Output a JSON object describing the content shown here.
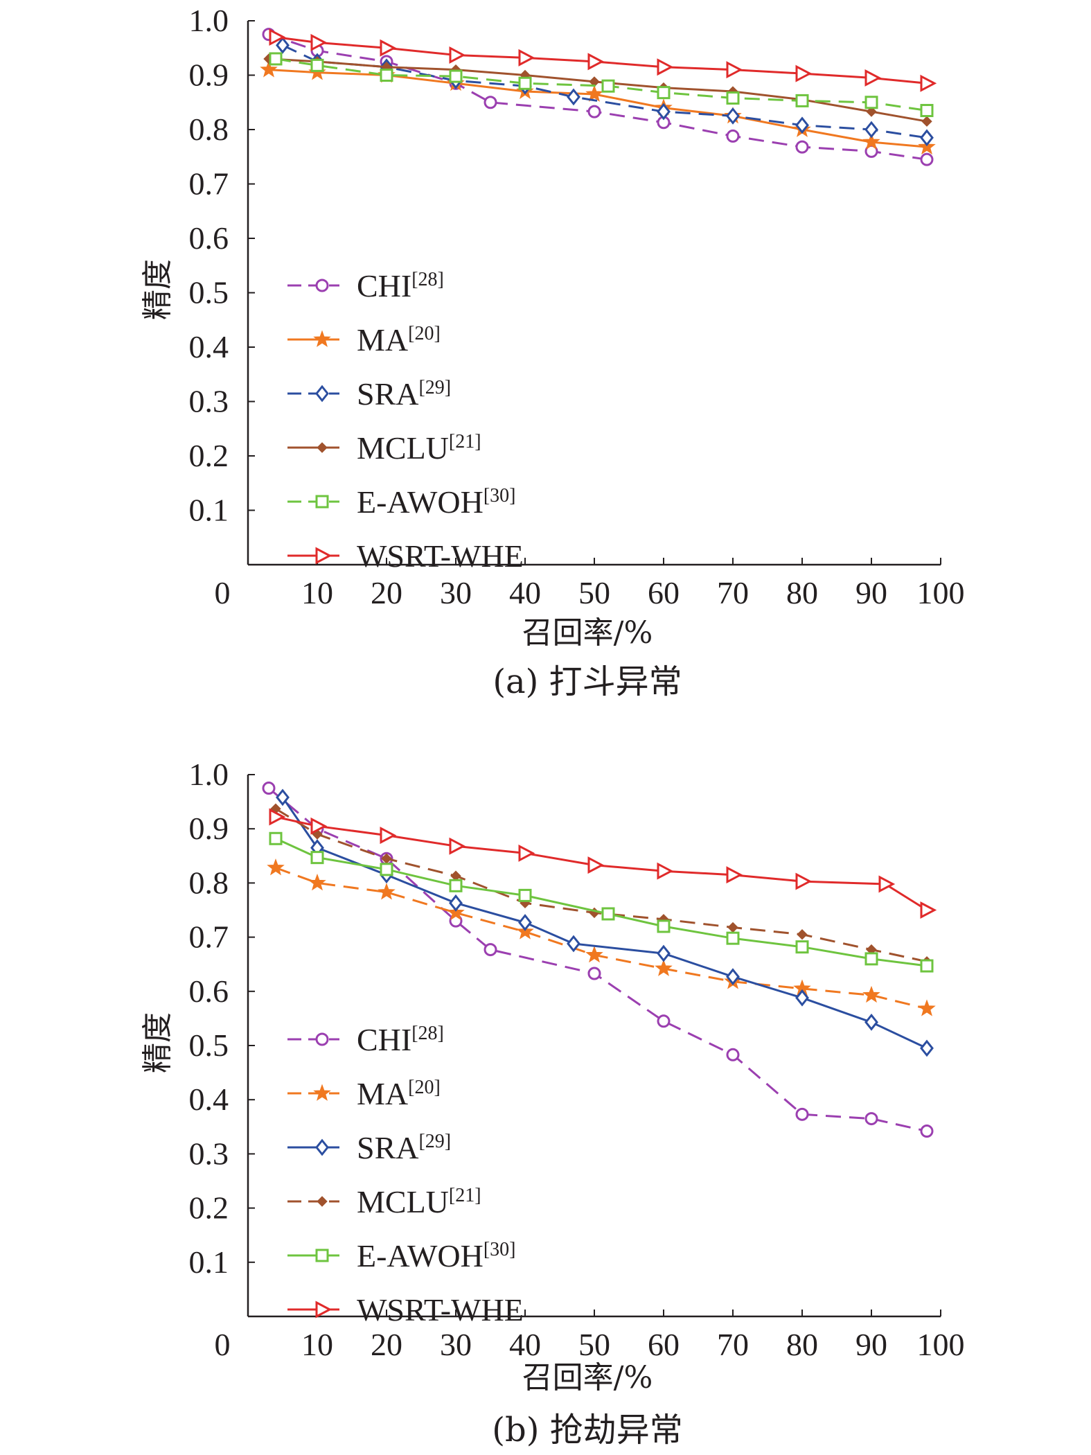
{
  "chart_data": [
    {
      "id": "a",
      "type": "line",
      "caption": "(a) 打斗异常",
      "xlabel": "召回率/%",
      "ylabel": "精度",
      "xlim": [
        0,
        100
      ],
      "ylim": [
        0,
        1.0
      ],
      "x_ticks": [
        "0",
        "10",
        "20",
        "30",
        "40",
        "50",
        "60",
        "70",
        "80",
        "90",
        "100"
      ],
      "y_ticks": [
        "0.1",
        "0.2",
        "0.3",
        "0.4",
        "0.5",
        "0.6",
        "0.7",
        "0.8",
        "0.9",
        "1.0"
      ],
      "legend_position": "center-left",
      "series": [
        {
          "name": "CHI",
          "ref": "[28]",
          "color": "#9b3fb0",
          "marker": "circle",
          "dash": "dashed",
          "x": [
            3,
            10,
            20,
            30,
            35,
            50,
            60,
            70,
            80,
            90,
            98
          ],
          "y": [
            0.975,
            0.945,
            0.925,
            0.885,
            0.85,
            0.833,
            0.813,
            0.788,
            0.768,
            0.76,
            0.745
          ]
        },
        {
          "name": "MA",
          "ref": "[20]",
          "color": "#f07820",
          "marker": "star",
          "dash": "solid",
          "x": [
            3,
            10,
            20,
            30,
            40,
            50,
            60,
            70,
            80,
            90,
            98
          ],
          "y": [
            0.91,
            0.905,
            0.9,
            0.885,
            0.87,
            0.865,
            0.84,
            0.825,
            0.8,
            0.777,
            0.768
          ]
        },
        {
          "name": "SRA",
          "ref": "[29]",
          "color": "#2b4ea0",
          "marker": "diamond",
          "dash": "dashed",
          "x": [
            5,
            10,
            20,
            30,
            40,
            47,
            60,
            70,
            80,
            90,
            98
          ],
          "y": [
            0.955,
            0.925,
            0.915,
            0.89,
            0.88,
            0.86,
            0.833,
            0.825,
            0.808,
            0.8,
            0.785
          ]
        },
        {
          "name": "MCLU",
          "ref": "[21]",
          "color": "#a0522d",
          "marker": "dot",
          "dash": "solid",
          "x": [
            3,
            10,
            20,
            30,
            40,
            50,
            60,
            70,
            80,
            90,
            98
          ],
          "y": [
            0.93,
            0.925,
            0.915,
            0.91,
            0.9,
            0.888,
            0.877,
            0.87,
            0.855,
            0.833,
            0.815
          ]
        },
        {
          "name": "E-AWOH",
          "ref": "[30]",
          "color": "#6ec43f",
          "marker": "square",
          "dash": "dashed",
          "x": [
            4,
            10,
            20,
            30,
            40,
            52,
            60,
            70,
            80,
            90,
            98
          ],
          "y": [
            0.93,
            0.918,
            0.9,
            0.898,
            0.885,
            0.88,
            0.868,
            0.858,
            0.853,
            0.85,
            0.835
          ]
        },
        {
          "name": "WSRT-WHE",
          "ref": "",
          "color": "#e02a2a",
          "marker": "triangle",
          "dash": "solid",
          "x": [
            4,
            10,
            20,
            30,
            40,
            50,
            60,
            70,
            80,
            90,
            98
          ],
          "y": [
            0.97,
            0.96,
            0.95,
            0.937,
            0.932,
            0.925,
            0.915,
            0.91,
            0.903,
            0.895,
            0.885
          ]
        }
      ]
    },
    {
      "id": "b",
      "type": "line",
      "caption": "(b) 抢劫异常",
      "xlabel": "召回率/%",
      "ylabel": "精度",
      "xlim": [
        0,
        100
      ],
      "ylim": [
        0,
        1.0
      ],
      "x_ticks": [
        "0",
        "10",
        "20",
        "30",
        "40",
        "50",
        "60",
        "70",
        "80",
        "90",
        "100"
      ],
      "y_ticks": [
        "0.1",
        "0.2",
        "0.3",
        "0.4",
        "0.5",
        "0.6",
        "0.7",
        "0.8",
        "0.9",
        "1.0"
      ],
      "legend_position": "center-left",
      "series": [
        {
          "name": "CHI",
          "ref": "[28]",
          "color": "#9b3fb0",
          "marker": "circle",
          "dash": "dashed",
          "x": [
            3,
            10,
            20,
            30,
            35,
            50,
            60,
            70,
            80,
            90,
            98
          ],
          "y": [
            0.975,
            0.9,
            0.845,
            0.73,
            0.677,
            0.633,
            0.545,
            0.483,
            0.373,
            0.365,
            0.342
          ]
        },
        {
          "name": "MA",
          "ref": "[20]",
          "color": "#f07820",
          "marker": "star",
          "dash": "dashed",
          "x": [
            4,
            10,
            20,
            30,
            40,
            50,
            60,
            70,
            80,
            90,
            98
          ],
          "y": [
            0.828,
            0.8,
            0.783,
            0.745,
            0.71,
            0.667,
            0.642,
            0.618,
            0.605,
            0.593,
            0.568
          ]
        },
        {
          "name": "SRA",
          "ref": "[29]",
          "color": "#2b4ea0",
          "marker": "diamond",
          "dash": "solid",
          "x": [
            5,
            10,
            20,
            30,
            40,
            47,
            60,
            70,
            80,
            90,
            98
          ],
          "y": [
            0.958,
            0.865,
            0.815,
            0.763,
            0.727,
            0.688,
            0.67,
            0.627,
            0.588,
            0.543,
            0.495
          ]
        },
        {
          "name": "MCLU",
          "ref": "[21]",
          "color": "#a0522d",
          "marker": "dot",
          "dash": "dashed",
          "x": [
            4,
            10,
            20,
            30,
            40,
            50,
            60,
            70,
            80,
            90,
            98
          ],
          "y": [
            0.937,
            0.89,
            0.845,
            0.813,
            0.763,
            0.745,
            0.733,
            0.718,
            0.705,
            0.677,
            0.655
          ]
        },
        {
          "name": "E-AWOH",
          "ref": "[30]",
          "color": "#6ec43f",
          "marker": "square",
          "dash": "solid",
          "x": [
            4,
            10,
            20,
            30,
            40,
            52,
            60,
            70,
            80,
            90,
            98
          ],
          "y": [
            0.882,
            0.847,
            0.825,
            0.795,
            0.777,
            0.743,
            0.72,
            0.698,
            0.682,
            0.66,
            0.647
          ]
        },
        {
          "name": "WSRT-WHE",
          "ref": "",
          "color": "#e02a2a",
          "marker": "triangle",
          "dash": "solid",
          "x": [
            4,
            10,
            20,
            30,
            40,
            50,
            60,
            70,
            80,
            92,
            98
          ],
          "y": [
            0.922,
            0.905,
            0.888,
            0.868,
            0.855,
            0.833,
            0.822,
            0.815,
            0.803,
            0.798,
            0.75
          ]
        }
      ]
    }
  ]
}
